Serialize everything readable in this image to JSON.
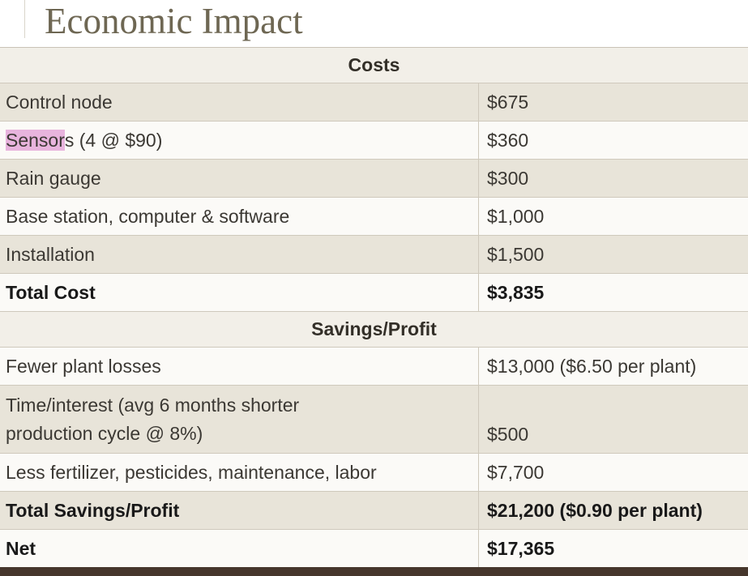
{
  "slide": {
    "title": "Economic Impact"
  },
  "sections": [
    {
      "header": "Costs",
      "rows": [
        {
          "label": "Control node",
          "value": "$675"
        },
        {
          "label_highlight": "Sensor",
          "label_rest": "s (4 @ $90)",
          "value": "$360"
        },
        {
          "label": "Rain gauge",
          "value": "$300"
        },
        {
          "label": "Base station, computer & software",
          "value": "$1,000"
        },
        {
          "label": "Installation",
          "value": "$1,500"
        },
        {
          "label": "Total Cost",
          "value": "$3,835"
        }
      ]
    },
    {
      "header": "Savings/Profit",
      "rows": [
        {
          "label": "Fewer plant losses",
          "value": "$13,000 ($6.50 per plant)"
        },
        {
          "label": "Time/interest (avg 6 months shorter production cycle @ 8%)",
          "value": "$500"
        },
        {
          "label": "Less fertilizer, pesticides, maintenance, labor",
          "value": "$7,700"
        },
        {
          "label": "Total Savings/Profit",
          "value": "$21,200 ($0.90 per plant)"
        },
        {
          "label": "Net",
          "value": "$17,365"
        }
      ]
    }
  ],
  "colors": {
    "highlight": "#e8b4dd",
    "band_beige": "#e8e4d9",
    "band_light": "#fbfaf7",
    "header_bg": "#f2efe8",
    "title_text": "#6e6753",
    "bottom_bar": "#46362c"
  }
}
